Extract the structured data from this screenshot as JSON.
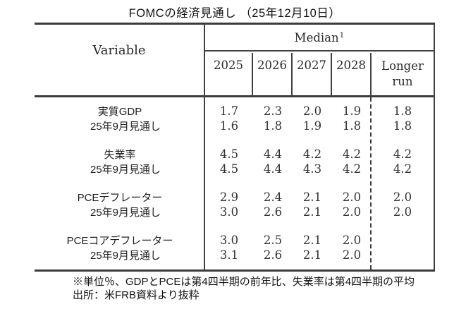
{
  "title": "FOMCの経済見通し （25年12月10日）",
  "table": {
    "variable_header": "Variable",
    "median_header": "Median",
    "median_superscript": "1",
    "year_headers": [
      "2025",
      "2026",
      "2027",
      "2028"
    ],
    "longer_run_lines": [
      "Longer",
      "run"
    ],
    "rows": [
      {
        "label": "実質GDP",
        "values": [
          "1.7",
          "2.3",
          "2.0",
          "1.9",
          "1.8"
        ]
      },
      {
        "label": "25年9月見通し",
        "values": [
          "1.6",
          "1.8",
          "1.9",
          "1.8",
          "1.8"
        ]
      },
      {
        "label": "失業率",
        "values": [
          "4.5",
          "4.4",
          "4.2",
          "4.2",
          "4.2"
        ]
      },
      {
        "label": "25年9月見通し",
        "values": [
          "4.5",
          "4.4",
          "4.3",
          "4.2",
          "4.2"
        ]
      },
      {
        "label": "PCEデフレーター",
        "values": [
          "2.9",
          "2.4",
          "2.1",
          "2.0",
          "2.0"
        ]
      },
      {
        "label": "25年9月見通し",
        "values": [
          "3.0",
          "2.6",
          "2.1",
          "2.0",
          "2.0"
        ]
      },
      {
        "label": "PCEコアデフレーター",
        "values": [
          "3.0",
          "2.5",
          "2.1",
          "2.0",
          ""
        ]
      },
      {
        "label": "25年9月見通し",
        "values": [
          "3.1",
          "2.6",
          "2.1",
          "2.0",
          ""
        ]
      }
    ]
  },
  "footnotes": {
    "line1": "※単位％、GDPとPCEは第4四半期の前年比、失業率は第4四半期の平均",
    "line2": "出所：米FRB資料より抜粋"
  },
  "colors": {
    "border": "#3b3b3b",
    "text": "#1d1d1d",
    "background": "#ffffff"
  }
}
